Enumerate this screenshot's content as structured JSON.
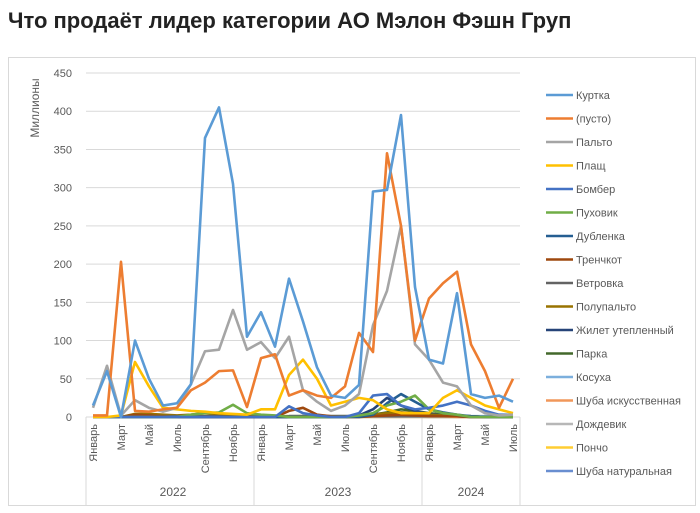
{
  "chart_data": {
    "type": "line",
    "title": "Что продаёт лидер категории АО Мэлон Фэшн Груп",
    "ylabel": "Миллионы",
    "xlabel": "",
    "ylim": [
      0,
      450
    ],
    "yticks": [
      0,
      50,
      100,
      150,
      200,
      250,
      300,
      350,
      400,
      450
    ],
    "grid": true,
    "legend_position": "right",
    "years": [
      {
        "label": "2022",
        "months": 12
      },
      {
        "label": "2023",
        "months": 12
      },
      {
        "label": "2024",
        "months": 7
      }
    ],
    "month_labels": [
      "Январь",
      "",
      "Март",
      "",
      "Май",
      "",
      "Июль",
      "",
      "Сентябрь",
      "",
      "Ноябрь",
      "",
      "Январь",
      "",
      "Март",
      "",
      "Май",
      "",
      "Июль",
      "",
      "Сентябрь",
      "",
      "Ноябрь",
      "",
      "Январь",
      "",
      "Март",
      "",
      "Май",
      "",
      "Июль"
    ],
    "series": [
      {
        "name": "Куртка",
        "color": "#5b9bd5",
        "values": [
          15,
          60,
          0,
          100,
          50,
          15,
          18,
          43,
          365,
          405,
          305,
          105,
          137,
          92,
          181,
          125,
          65,
          28,
          25,
          42,
          295,
          297,
          395,
          170,
          75,
          70,
          162,
          30,
          25,
          28,
          20
        ]
      },
      {
        "name": "(пусто)",
        "color": "#ed7d31",
        "values": [
          2,
          2,
          203,
          8,
          7,
          10,
          12,
          35,
          45,
          60,
          61,
          13,
          77,
          82,
          28,
          35,
          28,
          25,
          40,
          110,
          85,
          345,
          250,
          100,
          155,
          175,
          190,
          95,
          60,
          12,
          50
        ]
      },
      {
        "name": "Пальто",
        "color": "#a5a5a5",
        "values": [
          12,
          67,
          2,
          22,
          12,
          7,
          12,
          43,
          86,
          88,
          140,
          88,
          98,
          77,
          105,
          35,
          20,
          8,
          15,
          30,
          120,
          165,
          250,
          95,
          75,
          45,
          40,
          15,
          5,
          2,
          3
        ]
      },
      {
        "name": "Плащ",
        "color": "#ffc000",
        "values": [
          0,
          0,
          2,
          72,
          40,
          12,
          10,
          8,
          7,
          5,
          4,
          3,
          10,
          10,
          55,
          75,
          50,
          15,
          20,
          25,
          22,
          10,
          5,
          5,
          5,
          25,
          35,
          25,
          15,
          10,
          5
        ]
      },
      {
        "name": "Бомбер",
        "color": "#4472c4",
        "values": [
          0,
          0,
          0,
          0,
          0,
          0,
          0,
          0,
          0,
          0,
          0,
          0,
          0,
          0,
          14,
          5,
          2,
          0,
          0,
          5,
          28,
          30,
          15,
          10,
          12,
          15,
          20,
          15,
          8,
          3,
          3
        ]
      },
      {
        "name": "Пуховик",
        "color": "#70ad47",
        "values": [
          0,
          0,
          0,
          0,
          0,
          0,
          0,
          3,
          5,
          6,
          16,
          5,
          3,
          2,
          0,
          0,
          0,
          0,
          0,
          2,
          5,
          15,
          20,
          28,
          10,
          5,
          3,
          0,
          0,
          0,
          0
        ]
      },
      {
        "name": "Дубленка",
        "color": "#255e91",
        "values": [
          0,
          0,
          0,
          0,
          0,
          0,
          0,
          0,
          0,
          0,
          0,
          0,
          0,
          0,
          0,
          0,
          0,
          0,
          0,
          0,
          3,
          18,
          30,
          20,
          10,
          6,
          3,
          1,
          0,
          0,
          0
        ]
      },
      {
        "name": "Тренчкот",
        "color": "#9e480e",
        "values": [
          0,
          0,
          0,
          3,
          2,
          1,
          0,
          0,
          0,
          0,
          0,
          0,
          0,
          0,
          8,
          12,
          3,
          1,
          0,
          0,
          1,
          2,
          3,
          2,
          1,
          1,
          1,
          0,
          0,
          0,
          0
        ]
      },
      {
        "name": "Ветровка",
        "color": "#636363",
        "values": [
          0,
          0,
          0,
          2,
          2,
          1,
          1,
          1,
          1,
          1,
          0,
          0,
          0,
          0,
          1,
          1,
          1,
          1,
          1,
          1,
          1,
          1,
          1,
          1,
          1,
          1,
          1,
          1,
          0,
          0,
          0
        ]
      },
      {
        "name": "Полупальто",
        "color": "#997300",
        "values": [
          0,
          0,
          0,
          4,
          4,
          3,
          2,
          3,
          5,
          3,
          2,
          1,
          1,
          1,
          1,
          1,
          1,
          1,
          1,
          1,
          3,
          5,
          6,
          5,
          3,
          2,
          1,
          1,
          0,
          0,
          0
        ]
      },
      {
        "name": "Жилет утепленный",
        "color": "#264478",
        "values": [
          0,
          0,
          0,
          0,
          0,
          0,
          0,
          0,
          0,
          0,
          0,
          0,
          0,
          0,
          0,
          0,
          0,
          0,
          0,
          2,
          10,
          25,
          15,
          8,
          4,
          2,
          1,
          0,
          0,
          0,
          0
        ]
      },
      {
        "name": "Парка",
        "color": "#43682b",
        "values": [
          0,
          0,
          0,
          0,
          0,
          0,
          0,
          0,
          0,
          0,
          0,
          0,
          0,
          0,
          0,
          0,
          0,
          0,
          0,
          1,
          3,
          6,
          10,
          8,
          5,
          3,
          2,
          1,
          0,
          0,
          0
        ]
      },
      {
        "name": "Косуха",
        "color": "#7cafdd",
        "values": [
          0,
          0,
          0,
          0,
          0,
          0,
          0,
          0,
          0,
          0,
          0,
          0,
          0,
          0,
          1,
          1,
          1,
          1,
          1,
          1,
          1,
          1,
          1,
          1,
          1,
          1,
          1,
          1,
          1,
          1,
          1
        ]
      },
      {
        "name": "Шуба искусственная",
        "color": "#f1975a",
        "values": [
          0,
          0,
          0,
          0,
          0,
          0,
          0,
          0,
          1,
          1,
          1,
          0,
          0,
          0,
          0,
          0,
          0,
          0,
          0,
          0,
          1,
          1,
          2,
          1,
          1,
          1,
          0,
          0,
          0,
          0,
          0
        ]
      },
      {
        "name": "Дождевик",
        "color": "#b7b7b7",
        "values": [
          0,
          0,
          0,
          0,
          0,
          0,
          0,
          0,
          0,
          0,
          0,
          0,
          0,
          0,
          0,
          0,
          0,
          0,
          0,
          0,
          0,
          0,
          0,
          0,
          0,
          0,
          0,
          0,
          0,
          0,
          0
        ]
      },
      {
        "name": "Пончо",
        "color": "#ffcd33",
        "values": [
          0,
          0,
          0,
          0,
          0,
          0,
          0,
          0,
          0,
          0,
          0,
          0,
          0,
          0,
          0,
          0,
          0,
          0,
          0,
          0,
          0,
          0,
          0,
          0,
          0,
          0,
          0,
          0,
          0,
          0,
          0
        ]
      },
      {
        "name": "Шуба натуральная",
        "color": "#698ed0",
        "values": [
          0,
          0,
          0,
          0,
          0,
          0,
          0,
          0,
          0,
          0,
          0,
          0,
          0,
          0,
          0,
          0,
          0,
          0,
          0,
          0,
          1,
          2,
          2,
          1,
          0,
          0,
          0,
          0,
          0,
          0,
          0
        ]
      }
    ]
  }
}
